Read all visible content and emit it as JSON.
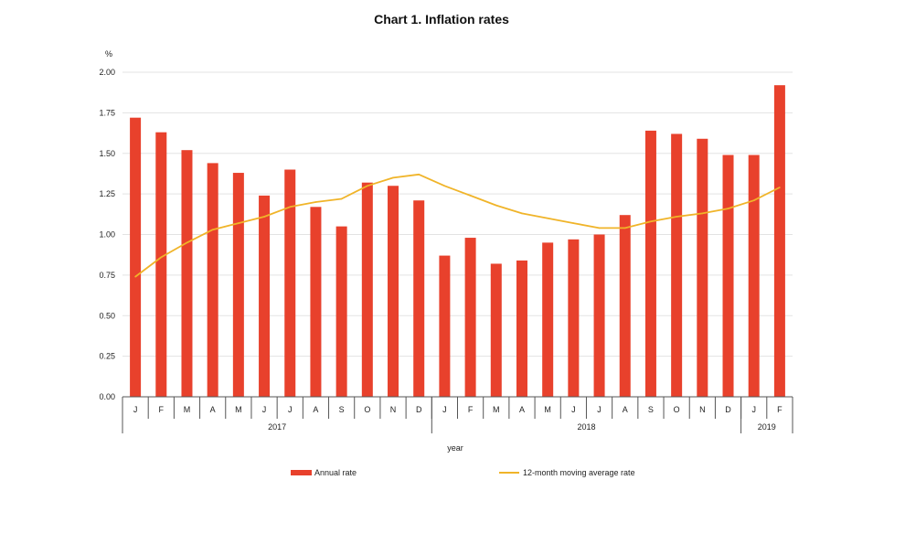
{
  "chart_data": {
    "type": "bar",
    "title": "Chart 1.  Inflation rates",
    "ylabel": "%",
    "xlabel": "year",
    "ylim": [
      0,
      2.0
    ],
    "yticks": [
      "0.00",
      "0.25",
      "0.50",
      "0.75",
      "1.00",
      "1.25",
      "1.50",
      "1.75",
      "2.00"
    ],
    "grid": true,
    "legend_position": "bottom",
    "categories": [
      "J",
      "F",
      "M",
      "A",
      "M",
      "J",
      "J",
      "A",
      "S",
      "O",
      "N",
      "D",
      "J",
      "F",
      "M",
      "A",
      "M",
      "J",
      "J",
      "A",
      "S",
      "O",
      "N",
      "D",
      "J",
      "F"
    ],
    "year_groups": [
      {
        "label": "2017",
        "count": 12
      },
      {
        "label": "2018",
        "count": 12
      },
      {
        "label": "2019",
        "count": 2
      }
    ],
    "series": [
      {
        "name": "Annual rate",
        "type": "bar",
        "color": "#e8412c",
        "values": [
          1.72,
          1.63,
          1.52,
          1.44,
          1.38,
          1.24,
          1.4,
          1.17,
          1.05,
          1.32,
          1.3,
          1.21,
          0.87,
          0.98,
          0.82,
          0.84,
          0.95,
          0.97,
          1.0,
          1.12,
          1.64,
          1.62,
          1.59,
          1.49,
          1.49,
          1.92
        ]
      },
      {
        "name": "12-month moving average rate",
        "type": "line",
        "color": "#f0b429",
        "values": [
          0.74,
          0.86,
          0.95,
          1.03,
          1.07,
          1.11,
          1.17,
          1.2,
          1.22,
          1.3,
          1.35,
          1.37,
          1.3,
          1.24,
          1.18,
          1.13,
          1.1,
          1.07,
          1.04,
          1.04,
          1.08,
          1.11,
          1.13,
          1.16,
          1.21,
          1.29
        ]
      }
    ]
  }
}
